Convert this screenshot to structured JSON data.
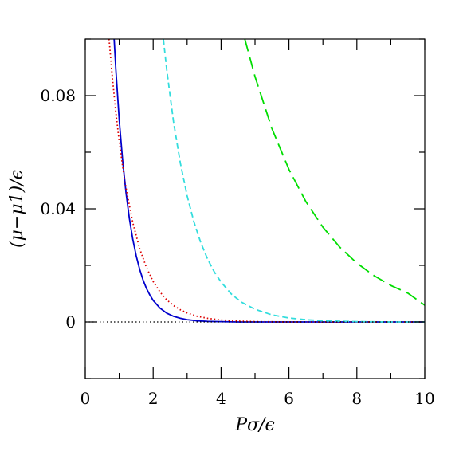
{
  "chart_data": {
    "type": "line",
    "title": "",
    "xlabel": "Pσ/ϵ",
    "ylabel": "(μ−μ1)/ϵ",
    "xlim": [
      0,
      10
    ],
    "ylim": [
      -0.02,
      0.1
    ],
    "x_ticks": [
      0,
      2,
      4,
      6,
      8,
      10
    ],
    "x_tick_labels": [
      "0",
      "2",
      "4",
      "6",
      "8",
      "10"
    ],
    "y_ticks": [
      0,
      0.04,
      0.08
    ],
    "y_tick_labels": [
      "0",
      "0.04",
      "0.08"
    ],
    "grid": false,
    "legend": "none",
    "series": [
      {
        "color": "#0000cc",
        "style": "solid",
        "x": [
          0.85,
          0.9,
          1.0,
          1.1,
          1.2,
          1.3,
          1.4,
          1.5,
          1.6,
          1.7,
          1.8,
          1.9,
          2.0,
          2.2,
          2.4,
          2.6,
          2.8,
          3.0,
          3.3,
          3.6,
          4.0,
          4.5,
          5.0,
          6.0,
          7.0,
          8.0,
          9.0,
          10.0
        ],
        "y": [
          0.1,
          0.0893,
          0.0714,
          0.0571,
          0.0457,
          0.0365,
          0.0292,
          0.0234,
          0.0187,
          0.0149,
          0.0119,
          0.0096,
          0.0076,
          0.0049,
          0.0031,
          0.002,
          0.0013,
          0.0008,
          0.0004,
          0.0002,
          0.0001,
          0.0,
          0.0,
          0.0,
          0.0,
          0.0,
          0.0,
          0.0
        ]
      },
      {
        "color": "#dd0000",
        "style": "dotted",
        "x": [
          0.7,
          0.8,
          0.9,
          1.0,
          1.1,
          1.2,
          1.4,
          1.6,
          1.8,
          2.0,
          2.2,
          2.4,
          2.6,
          2.8,
          3.0,
          3.3,
          3.6,
          4.0,
          4.5,
          5.0,
          6.0,
          7.0,
          8.0,
          9.0,
          10.0
        ],
        "y": [
          0.1,
          0.0861,
          0.0741,
          0.0638,
          0.055,
          0.0473,
          0.0351,
          0.026,
          0.0193,
          0.0143,
          0.0106,
          0.0078,
          0.0058,
          0.0043,
          0.0032,
          0.002,
          0.0013,
          0.0007,
          0.0003,
          0.0001,
          0.0,
          0.0,
          0.0,
          0.0,
          0.0
        ]
      },
      {
        "color": "#33dddd",
        "style": "dashed",
        "x": [
          2.3,
          2.4,
          2.6,
          2.8,
          3.0,
          3.2,
          3.4,
          3.6,
          3.8,
          4.0,
          4.3,
          4.6,
          5.0,
          5.5,
          6.0,
          6.5,
          7.0,
          8.0,
          9.0,
          10.0
        ],
        "y": [
          0.1,
          0.0891,
          0.0707,
          0.0562,
          0.0446,
          0.0354,
          0.0281,
          0.0223,
          0.0177,
          0.0141,
          0.0099,
          0.007,
          0.0045,
          0.0025,
          0.0014,
          0.0008,
          0.0004,
          0.0001,
          0.0,
          0.0
        ]
      },
      {
        "color": "#00dd00",
        "style": "long-dashed",
        "x": [
          4.7,
          5.0,
          5.5,
          6.0,
          6.5,
          7.0,
          7.5,
          8.0,
          8.5,
          9.0,
          9.5,
          10.0
        ],
        "y": [
          0.1,
          0.0867,
          0.0683,
          0.0539,
          0.0425,
          0.0335,
          0.0264,
          0.0208,
          0.0164,
          0.0129,
          0.0102,
          0.0059
        ]
      },
      {
        "color": "#000000",
        "style": "dotted",
        "x": [
          0,
          10
        ],
        "y": [
          0,
          0
        ]
      }
    ]
  }
}
